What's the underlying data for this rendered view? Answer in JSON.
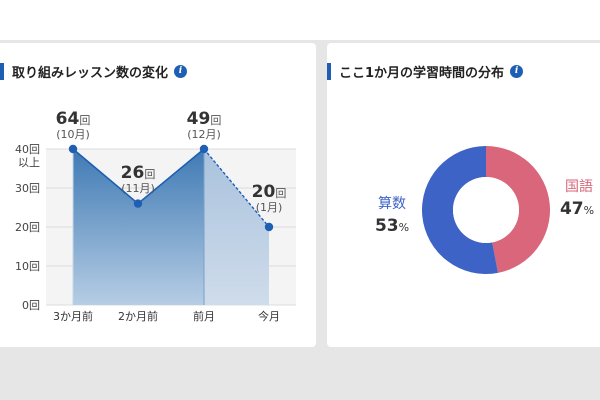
{
  "left_card": {
    "title": "取り組みレッスン数の変化",
    "info_icon": "i"
  },
  "right_card": {
    "title": "ここ1か月の学習時間の分布",
    "info_icon": "i"
  },
  "chart_data": [
    {
      "type": "area",
      "title": "取り組みレッスン数の変化",
      "categories": [
        "3か月前",
        "2か月前",
        "前月",
        "今月"
      ],
      "values": [
        64,
        26,
        49,
        20
      ],
      "point_labels": [
        {
          "value": "64",
          "unit": "回",
          "sub": "(10月)"
        },
        {
          "value": "26",
          "unit": "回",
          "sub": "(11月)"
        },
        {
          "value": "49",
          "unit": "回",
          "sub": "(12月)"
        },
        {
          "value": "20",
          "unit": "回",
          "sub": "(1月)"
        }
      ],
      "yticks": [
        "0回",
        "10回",
        "20回",
        "30回",
        "40回"
      ],
      "ytick_overflow": "以上",
      "ylim": [
        0,
        40
      ],
      "capped_at": 40,
      "last_segment_dashed": true,
      "grid": true,
      "colors": {
        "fill_dark": "#3f7ab4",
        "fill_light": "#cfdceb",
        "line": "#1e5fb4",
        "point": "#1e5fb4",
        "plot_bg": "#f4f4f4"
      }
    },
    {
      "type": "pie",
      "title": "ここ1か月の学習時間の分布",
      "slices": [
        {
          "name": "算数",
          "value": 53,
          "unit": "%",
          "color": "#3d63c6"
        },
        {
          "name": "国語",
          "value": 47,
          "unit": "%",
          "color": "#d9667a"
        }
      ],
      "donut": true
    }
  ]
}
